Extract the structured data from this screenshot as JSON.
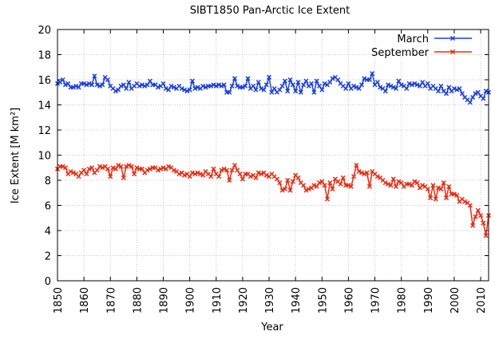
{
  "chart_data": {
    "type": "line",
    "title": "SIBT1850 Pan-Arctic Ice Extent",
    "xlabel": "Year",
    "ylabel": "Ice Extent [M km²]",
    "xlim": [
      1850,
      2013
    ],
    "ylim": [
      0,
      20
    ],
    "xticks": [
      1850,
      1860,
      1870,
      1880,
      1890,
      1900,
      1910,
      1920,
      1930,
      1940,
      1950,
      1960,
      1970,
      1980,
      1990,
      2000,
      2010
    ],
    "yticks": [
      0,
      2,
      4,
      6,
      8,
      10,
      12,
      14,
      16,
      18,
      20
    ],
    "grid": true,
    "legend_position": "top-right",
    "x_start": 1850,
    "series": [
      {
        "name": "March",
        "color": "#1a3fe6",
        "values": [
          15.7,
          15.8,
          16.0,
          15.6,
          15.7,
          15.4,
          15.4,
          15.5,
          15.4,
          15.7,
          15.7,
          15.6,
          15.7,
          15.6,
          16.3,
          15.6,
          15.5,
          15.6,
          16.2,
          16.0,
          15.5,
          15.3,
          15.1,
          15.2,
          15.5,
          15.6,
          15.3,
          15.8,
          15.3,
          15.5,
          15.7,
          15.5,
          15.6,
          15.5,
          15.6,
          15.9,
          15.6,
          15.6,
          15.4,
          15.5,
          15.7,
          15.3,
          15.2,
          15.5,
          15.4,
          15.3,
          15.5,
          15.3,
          15.2,
          15.1,
          15.2,
          15.9,
          15.3,
          15.4,
          15.3,
          15.5,
          15.4,
          15.5,
          15.5,
          15.6,
          15.5,
          15.6,
          15.5,
          15.6,
          15.0,
          15.0,
          15.5,
          16.1,
          15.5,
          15.4,
          15.4,
          15.5,
          16.1,
          15.3,
          15.5,
          15.2,
          15.8,
          15.3,
          15.2,
          15.6,
          16.2,
          15.0,
          15.3,
          15.0,
          15.2,
          15.5,
          15.9,
          15.1,
          16.0,
          15.6,
          15.1,
          15.8,
          15.0,
          15.6,
          15.9,
          15.5,
          15.7,
          15.0,
          15.9,
          15.5,
          15.2,
          15.7,
          15.6,
          15.8,
          16.1,
          16.2,
          16.0,
          15.7,
          15.5,
          15.3,
          15.7,
          15.3,
          15.5,
          15.4,
          15.3,
          15.6,
          16.1,
          16.0,
          16.0,
          16.5,
          15.6,
          15.8,
          15.4,
          15.3,
          15.1,
          15.6,
          15.5,
          15.4,
          15.3,
          15.9,
          15.6,
          15.5,
          15.3,
          15.7,
          15.6,
          15.7,
          15.6,
          15.5,
          15.8,
          15.5,
          15.7,
          15.3,
          15.5,
          15.3,
          15.1,
          15.5,
          15.1,
          14.9,
          15.4,
          15.1,
          15.3,
          15.2,
          15.3,
          14.9,
          14.6,
          14.4,
          14.2,
          14.6,
          14.9,
          15.0,
          14.7,
          14.5,
          15.1,
          15.0
        ]
      },
      {
        "name": "September",
        "color": "#f02a10",
        "values": [
          8.9,
          9.1,
          9.1,
          9.0,
          8.5,
          8.7,
          8.6,
          8.5,
          8.3,
          8.6,
          8.8,
          8.5,
          8.9,
          9.0,
          8.6,
          8.8,
          9.1,
          9.0,
          9.1,
          8.9,
          8.3,
          9.0,
          8.9,
          9.2,
          9.1,
          8.2,
          9.1,
          9.2,
          9.1,
          8.5,
          9.0,
          8.9,
          8.9,
          8.6,
          8.8,
          8.9,
          9.0,
          9.0,
          8.8,
          8.9,
          9.0,
          8.9,
          9.1,
          9.0,
          8.8,
          8.7,
          8.5,
          8.6,
          8.4,
          8.5,
          8.3,
          8.6,
          8.5,
          8.6,
          8.5,
          8.4,
          8.7,
          8.5,
          8.3,
          8.9,
          8.5,
          8.3,
          8.8,
          8.9,
          8.8,
          8.0,
          8.8,
          9.2,
          8.8,
          8.5,
          8.1,
          8.5,
          8.5,
          8.3,
          8.4,
          8.2,
          8.6,
          8.5,
          8.6,
          8.4,
          8.3,
          8.5,
          8.3,
          8.1,
          7.8,
          7.2,
          7.3,
          8.0,
          7.2,
          7.9,
          8.4,
          8.2,
          7.8,
          7.6,
          7.2,
          7.3,
          7.4,
          7.6,
          7.5,
          7.8,
          7.9,
          7.6,
          6.5,
          7.8,
          7.3,
          8.1,
          7.9,
          7.7,
          8.2,
          7.6,
          7.6,
          7.5,
          8.3,
          9.2,
          8.7,
          8.6,
          8.5,
          8.6,
          7.5,
          8.7,
          8.5,
          8.3,
          8.2,
          8.0,
          7.8,
          7.7,
          7.6,
          8.1,
          7.5,
          7.9,
          7.8,
          7.5,
          7.7,
          7.7,
          7.6,
          7.9,
          7.8,
          7.4,
          7.6,
          7.5,
          7.3,
          6.6,
          7.6,
          6.5,
          7.4,
          7.3,
          7.8,
          6.6,
          7.5,
          6.9,
          6.9,
          6.8,
          6.3,
          6.5,
          6.3,
          6.2,
          6.0,
          4.4,
          5.1,
          5.6,
          5.2,
          4.6,
          3.6,
          5.2
        ]
      }
    ]
  }
}
